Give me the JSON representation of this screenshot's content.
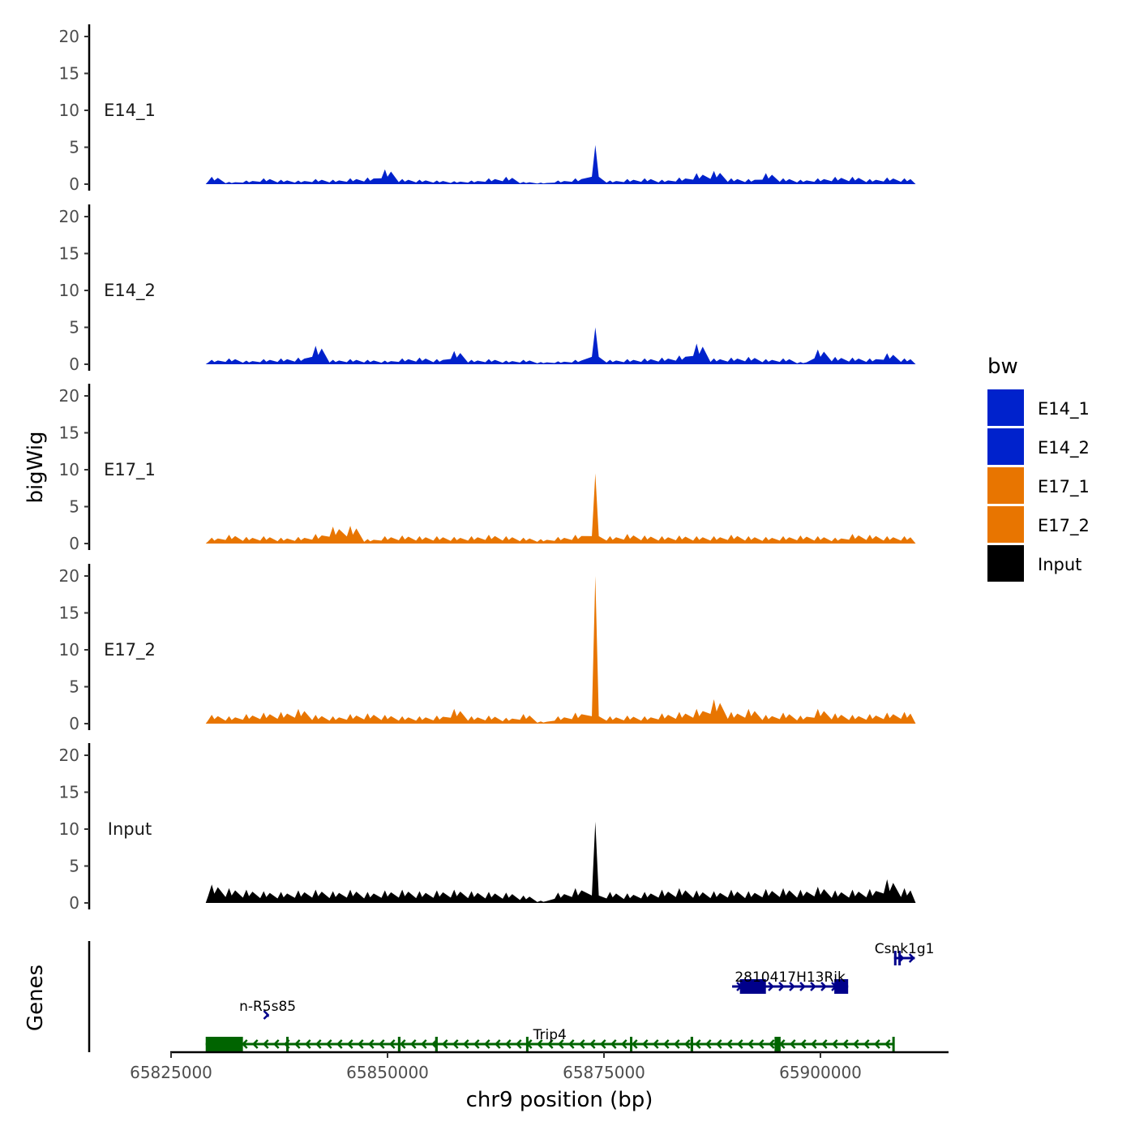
{
  "chart_data": {
    "type": "area",
    "xlabel": "chr9 position (bp)",
    "ylabel": "bigWig",
    "genes_label": "Genes",
    "ylim": [
      0,
      21
    ],
    "yticks": [
      0,
      5,
      10,
      15,
      20
    ],
    "xlim": [
      65825000,
      65915000
    ],
    "xticks": [
      65825000,
      65850000,
      65875000,
      65900000
    ],
    "xtick_labels": [
      "65825000",
      "65850000",
      "65875000",
      "65900000"
    ],
    "bin_start": 65829000,
    "bin_size": 2000,
    "legend": {
      "title": "bw",
      "placement": "right",
      "entries": [
        {
          "label": "E14_1",
          "color": "#0022CC"
        },
        {
          "label": "E14_2",
          "color": "#0022CC"
        },
        {
          "label": "E17_1",
          "color": "#E87500"
        },
        {
          "label": "E17_2",
          "color": "#E87500"
        },
        {
          "label": "Input",
          "color": "#000000"
        }
      ]
    },
    "series": [
      {
        "name": "E14_1",
        "color": "#0022CC",
        "values": [
          1,
          0.3,
          0.5,
          0.8,
          0.6,
          0.5,
          0.7,
          0.6,
          0.8,
          0.9,
          2,
          0.7,
          0.6,
          0.5,
          0.4,
          0.5,
          0.8,
          1,
          0.3,
          0.2,
          0.5,
          0.8,
          5.3,
          0.5,
          0.7,
          0.8,
          0.6,
          0.9,
          1.5,
          1.8,
          0.8,
          0.7,
          1.5,
          0.8,
          0.6,
          0.8,
          1,
          1,
          0.7,
          0.9,
          0.8
        ]
      },
      {
        "name": "E14_2",
        "color": "#0022CC",
        "values": [
          0.6,
          0.8,
          0.5,
          0.7,
          0.8,
          0.9,
          2.5,
          0.6,
          0.7,
          0.6,
          0.5,
          0.8,
          0.9,
          0.7,
          1.8,
          0.6,
          0.7,
          0.5,
          0.6,
          0.3,
          0.4,
          0.6,
          5,
          0.6,
          0.7,
          0.8,
          0.9,
          1.2,
          2.8,
          0.8,
          0.9,
          1,
          0.7,
          0.8,
          0.3,
          2,
          1,
          0.9,
          0.8,
          1.5,
          0.8
        ]
      },
      {
        "name": "E17_1",
        "color": "#E87500",
        "values": [
          0.8,
          1.2,
          0.9,
          1,
          0.8,
          0.9,
          1.3,
          2.3,
          2.4,
          0.6,
          1,
          1.1,
          1,
          1,
          0.9,
          1,
          1.2,
          1,
          0.8,
          0.6,
          0.9,
          1.2,
          9.5,
          1,
          1.3,
          1.1,
          1,
          1.1,
          1,
          1,
          1.2,
          1,
          0.9,
          1,
          1.1,
          1,
          0.8,
          1.3,
          1.2,
          1,
          1
        ]
      },
      {
        "name": "E17_2",
        "color": "#E87500",
        "values": [
          1.2,
          1,
          1.3,
          1.5,
          1.6,
          2,
          1.2,
          1,
          1.3,
          1.4,
          1.2,
          1,
          1,
          1.1,
          2,
          1,
          1.1,
          0.8,
          1.3,
          0.3,
          1,
          1.5,
          20,
          1,
          1.1,
          1,
          1.4,
          1.6,
          2,
          3.3,
          1.6,
          2,
          1.2,
          1.5,
          1.1,
          2,
          1.4,
          1.2,
          1.3,
          1.5,
          1.6
        ]
      },
      {
        "name": "Input",
        "color": "#000000",
        "values": [
          2.5,
          2,
          1.8,
          1.6,
          1.5,
          1.7,
          1.8,
          1.6,
          1.8,
          1.5,
          1.7,
          1.8,
          1.6,
          1.7,
          1.8,
          1.6,
          1.5,
          1.4,
          1,
          0.3,
          1.4,
          2,
          11,
          1.5,
          1.3,
          1.5,
          1.8,
          2,
          1.7,
          1.6,
          1.8,
          1.6,
          1.9,
          2,
          1.8,
          2.2,
          1.7,
          1.8,
          1.9,
          3.2,
          2
        ]
      }
    ],
    "genes": [
      {
        "name": "Csnk1g1",
        "strand": "+",
        "start": 65908500,
        "end": 65910900,
        "color": "#00008B",
        "exons": [
          [
            65908500,
            65908700
          ],
          [
            65909000,
            65909200
          ]
        ]
      },
      {
        "name": "2810417H13Rik",
        "strand": "+",
        "start": 65889800,
        "end": 65903200,
        "color": "#00008B",
        "exons": [
          [
            65890700,
            65893700
          ],
          [
            65901600,
            65903200
          ]
        ]
      },
      {
        "name": "n-R5s85",
        "strand": "+",
        "start": 65836000,
        "end": 65836300,
        "color": "#00008B",
        "exons": []
      },
      {
        "name": "Trip4",
        "strand": "-",
        "start": 65829000,
        "end": 65908500,
        "color": "#006400",
        "exons": [
          [
            65829000,
            65833300
          ],
          [
            65838300,
            65838500
          ],
          [
            65851200,
            65851500
          ],
          [
            65855500,
            65855800
          ],
          [
            65866000,
            65866200
          ],
          [
            65878000,
            65878200
          ],
          [
            65885000,
            65885300
          ],
          [
            65894700,
            65895400
          ],
          [
            65908300,
            65908500
          ]
        ]
      }
    ]
  }
}
